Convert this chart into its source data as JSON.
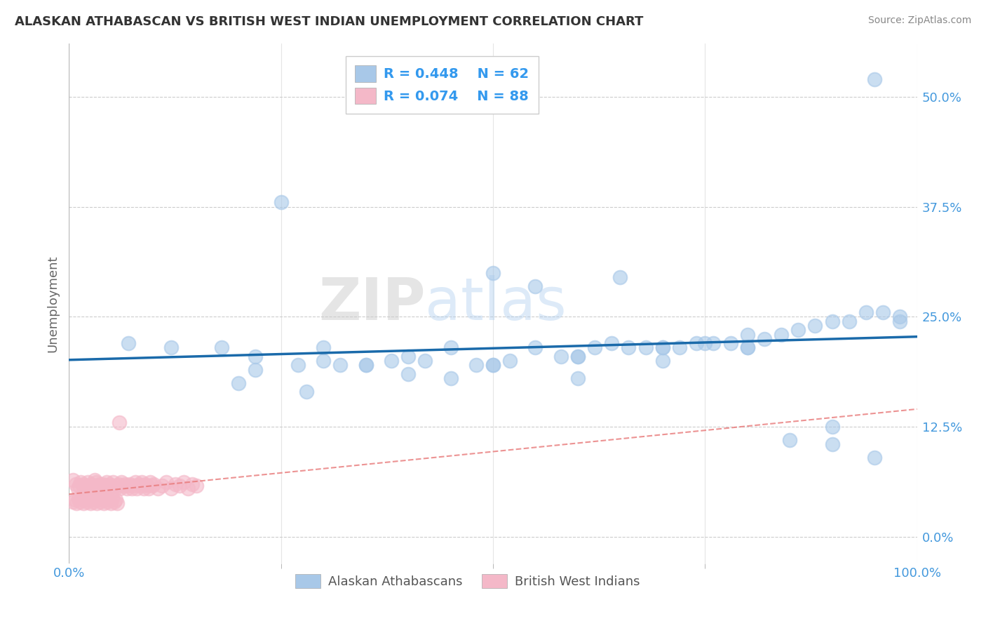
{
  "title": "ALASKAN ATHABASCAN VS BRITISH WEST INDIAN UNEMPLOYMENT CORRELATION CHART",
  "source": "Source: ZipAtlas.com",
  "ylabel": "Unemployment",
  "ytick_positions": [
    0.0,
    0.125,
    0.25,
    0.375,
    0.5
  ],
  "ytick_labels": [
    "0.0%",
    "12.5%",
    "25.0%",
    "37.5%",
    "50.0%"
  ],
  "xlim": [
    0.0,
    1.0
  ],
  "ylim": [
    -0.03,
    0.56
  ],
  "legend_r_blue": "R = 0.448",
  "legend_n_blue": "N = 62",
  "legend_r_pink": "R = 0.074",
  "legend_n_pink": "N = 88",
  "blue_color": "#A8C8E8",
  "pink_color": "#F4B8C8",
  "line_blue": "#1A6AAA",
  "line_pink": "#E87878",
  "legend_label_blue": "Alaskan Athabascans",
  "legend_label_pink": "British West Indians",
  "watermark_zip": "ZIP",
  "watermark_atlas": "atlas",
  "blue_scatter_x": [
    0.07,
    0.12,
    0.18,
    0.22,
    0.22,
    0.27,
    0.28,
    0.3,
    0.32,
    0.35,
    0.38,
    0.4,
    0.42,
    0.45,
    0.48,
    0.5,
    0.52,
    0.55,
    0.58,
    0.6,
    0.62,
    0.64,
    0.66,
    0.68,
    0.7,
    0.72,
    0.74,
    0.76,
    0.78,
    0.8,
    0.82,
    0.84,
    0.86,
    0.88,
    0.9,
    0.92,
    0.94,
    0.96,
    0.98,
    0.5,
    0.55,
    0.6,
    0.65,
    0.7,
    0.75,
    0.8,
    0.85,
    0.9,
    0.95,
    0.2,
    0.25,
    0.3,
    0.35,
    0.4,
    0.45,
    0.5,
    0.6,
    0.7,
    0.8,
    0.9,
    0.95,
    0.98
  ],
  "blue_scatter_y": [
    0.22,
    0.215,
    0.215,
    0.205,
    0.19,
    0.195,
    0.165,
    0.2,
    0.195,
    0.195,
    0.2,
    0.205,
    0.2,
    0.215,
    0.195,
    0.195,
    0.2,
    0.215,
    0.205,
    0.205,
    0.215,
    0.22,
    0.215,
    0.215,
    0.215,
    0.215,
    0.22,
    0.22,
    0.22,
    0.23,
    0.225,
    0.23,
    0.235,
    0.24,
    0.245,
    0.245,
    0.255,
    0.255,
    0.25,
    0.3,
    0.285,
    0.205,
    0.295,
    0.215,
    0.22,
    0.215,
    0.11,
    0.125,
    0.09,
    0.175,
    0.38,
    0.215,
    0.195,
    0.185,
    0.18,
    0.195,
    0.18,
    0.2,
    0.215,
    0.105,
    0.52,
    0.245
  ],
  "pink_scatter_x": [
    0.005,
    0.008,
    0.01,
    0.012,
    0.014,
    0.016,
    0.018,
    0.02,
    0.022,
    0.024,
    0.026,
    0.028,
    0.03,
    0.032,
    0.034,
    0.036,
    0.038,
    0.04,
    0.042,
    0.044,
    0.046,
    0.048,
    0.05,
    0.052,
    0.054,
    0.056,
    0.058,
    0.06,
    0.062,
    0.064,
    0.066,
    0.068,
    0.07,
    0.072,
    0.074,
    0.076,
    0.078,
    0.08,
    0.082,
    0.084,
    0.086,
    0.088,
    0.09,
    0.092,
    0.094,
    0.096,
    0.098,
    0.1,
    0.105,
    0.11,
    0.115,
    0.12,
    0.125,
    0.13,
    0.135,
    0.14,
    0.145,
    0.15,
    0.005,
    0.007,
    0.009,
    0.011,
    0.013,
    0.015,
    0.017,
    0.019,
    0.021,
    0.023,
    0.025,
    0.027,
    0.029,
    0.031,
    0.033,
    0.035,
    0.037,
    0.039,
    0.041,
    0.043,
    0.045,
    0.047,
    0.049,
    0.051,
    0.053,
    0.055,
    0.057,
    0.059
  ],
  "pink_scatter_y": [
    0.065,
    0.06,
    0.055,
    0.058,
    0.062,
    0.06,
    0.055,
    0.058,
    0.062,
    0.057,
    0.06,
    0.055,
    0.065,
    0.062,
    0.058,
    0.06,
    0.055,
    0.06,
    0.058,
    0.062,
    0.055,
    0.06,
    0.058,
    0.062,
    0.055,
    0.058,
    0.06,
    0.055,
    0.062,
    0.058,
    0.06,
    0.055,
    0.058,
    0.06,
    0.055,
    0.058,
    0.062,
    0.055,
    0.06,
    0.058,
    0.062,
    0.055,
    0.06,
    0.058,
    0.055,
    0.062,
    0.058,
    0.06,
    0.055,
    0.058,
    0.062,
    0.055,
    0.06,
    0.058,
    0.062,
    0.055,
    0.06,
    0.058,
    0.04,
    0.042,
    0.038,
    0.044,
    0.04,
    0.042,
    0.038,
    0.044,
    0.04,
    0.042,
    0.038,
    0.044,
    0.04,
    0.042,
    0.038,
    0.044,
    0.04,
    0.042,
    0.038,
    0.044,
    0.04,
    0.042,
    0.038,
    0.044,
    0.04,
    0.042,
    0.038,
    0.13
  ]
}
